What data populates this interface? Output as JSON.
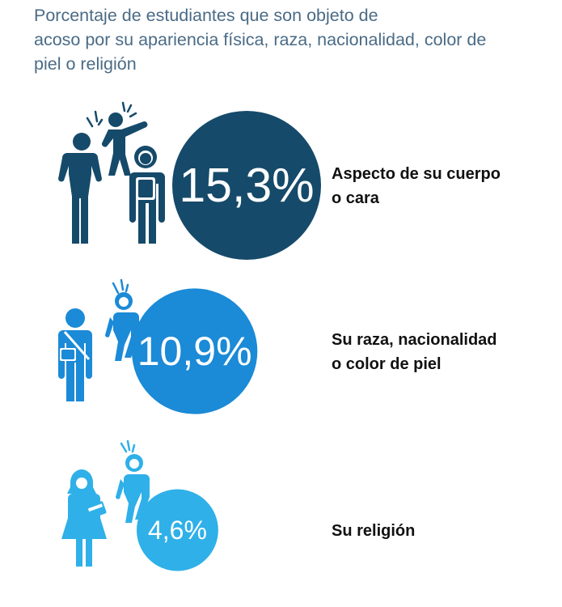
{
  "title_lines": [
    "Porcentaje de estudiantes que son objeto de",
    "acoso por su apariencia física, raza, nacionalidad, color de",
    "piel o religión"
  ],
  "colors": {
    "title": "#4a6b86",
    "dark_navy": "#164a6a",
    "medium_blue": "#1b8ad7",
    "light_blue": "#2fb0e8"
  },
  "chart_data": {
    "type": "bubble",
    "unit": "%",
    "categories": [
      "Aspecto de su cuerpo o cara",
      "Su raza, nacionalidad o color de piel",
      "Su religión"
    ],
    "values": [
      15.3,
      10.9,
      4.6
    ],
    "value_labels": [
      "15,3%",
      "10,9%",
      "4,6%"
    ],
    "label_lines": [
      [
        "Aspecto de su cuerpo",
        "o cara"
      ],
      [
        "Su raza, nacionalidad",
        "o color de piel"
      ],
      [
        "Su religión"
      ]
    ],
    "colors": [
      "#164a6a",
      "#1b8ad7",
      "#2fb0e8"
    ],
    "icons": [
      "bullied-student-group-icon",
      "bullied-student-pair-icon",
      "bullied-student-hijab-icon"
    ],
    "legend": "none",
    "grid": false
  }
}
